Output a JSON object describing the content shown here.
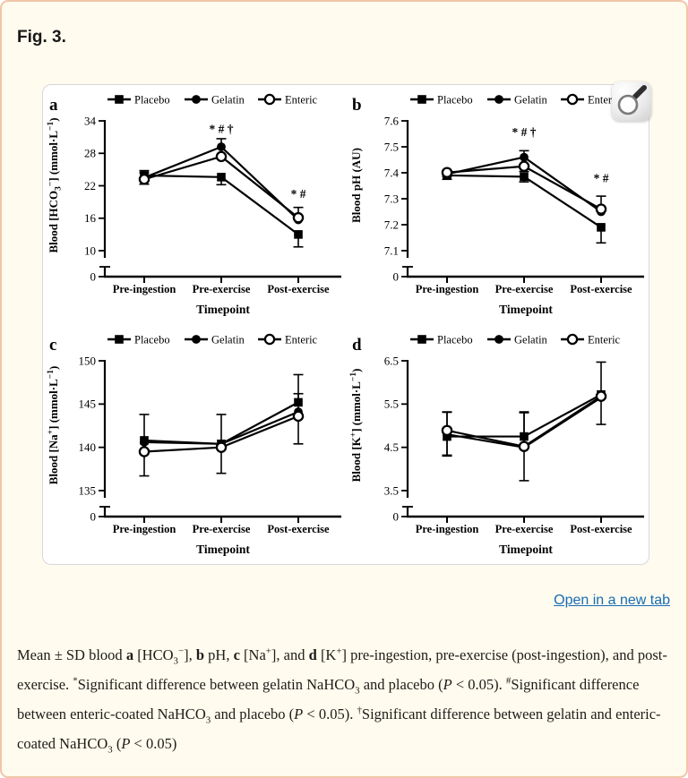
{
  "page": {
    "figure_label": "Fig. 3.",
    "open_link_label": "Open in a new tab",
    "colors": {
      "card_background": "#fffbee",
      "card_border": "#f2c5a9",
      "link": "#176cb4",
      "figure_border": "#d8d8d6",
      "ink": "#000000"
    },
    "icons": {
      "figure_zoom": "magnifier-icon"
    }
  },
  "caption": {
    "segments": [
      {
        "t": "Mean ± SD blood "
      },
      {
        "t": "a",
        "s": "b"
      },
      {
        "t": " [HCO"
      },
      {
        "t": "3",
        "s": "sub"
      },
      {
        "t": "−",
        "s": "sup"
      },
      {
        "t": "], "
      },
      {
        "t": "b",
        "s": "b"
      },
      {
        "t": " pH, "
      },
      {
        "t": "c",
        "s": "b"
      },
      {
        "t": " [Na"
      },
      {
        "t": "+",
        "s": "sup"
      },
      {
        "t": "], and "
      },
      {
        "t": "d",
        "s": "b"
      },
      {
        "t": " [K"
      },
      {
        "t": "+",
        "s": "sup"
      },
      {
        "t": "] pre-ingestion, pre-exercise (post-ingestion), and post-exercise. "
      },
      {
        "t": "*",
        "s": "sup"
      },
      {
        "t": "Significant difference between gelatin NaHCO"
      },
      {
        "t": "3",
        "s": "sub"
      },
      {
        "t": " and placebo ("
      },
      {
        "t": "P",
        "s": "i"
      },
      {
        "t": " < 0.05). "
      },
      {
        "t": "#",
        "s": "sup"
      },
      {
        "t": "Significant difference between enteric-coated NaHCO"
      },
      {
        "t": "3",
        "s": "sub"
      },
      {
        "t": " and placebo ("
      },
      {
        "t": "P",
        "s": "i"
      },
      {
        "t": " < 0.05). "
      },
      {
        "t": "†",
        "s": "sup"
      },
      {
        "t": "Significant difference between gelatin and enteric-coated NaHCO"
      },
      {
        "t": "3",
        "s": "sub"
      },
      {
        "t": " ("
      },
      {
        "t": "P",
        "s": "i"
      },
      {
        "t": " < 0.05)"
      }
    ]
  },
  "chart_data": [
    {
      "type": "line",
      "panel": "a",
      "xlabel": "Timepoint",
      "categories": [
        "Pre-ingestion",
        "Pre-exercise",
        "Post-exercise"
      ],
      "ylabel_parts": [
        {
          "t": "Blood [HCO"
        },
        {
          "t": "3",
          "s": "sub"
        },
        {
          "t": "−",
          "s": "sup"
        },
        {
          "t": "] (mmol·L"
        },
        {
          "t": "−1",
          "s": "sup"
        },
        {
          "t": ")"
        }
      ],
      "ymax": 34,
      "ymin_tick": 10,
      "yticks": [
        34,
        28,
        22,
        16,
        10
      ],
      "zero_label": "0",
      "series": [
        {
          "name": "Placebo",
          "marker": "filled-square",
          "values": [
            23.9,
            23.6,
            13.0
          ],
          "err_up": [
            0.9,
            0,
            0
          ],
          "err_down": [
            0.9,
            1.4,
            2.3
          ]
        },
        {
          "name": "Gelatin",
          "marker": "filled-circle",
          "values": [
            23.5,
            29.2,
            15.7
          ],
          "err_up": [
            0.9,
            1.5,
            2.3
          ],
          "err_down": [
            0,
            0,
            0
          ]
        },
        {
          "name": "Enteric",
          "marker": "open-circle",
          "values": [
            23.2,
            27.4,
            16.1
          ],
          "err_up": [
            0,
            0,
            0
          ],
          "err_down": [
            0.9,
            0,
            0
          ]
        }
      ],
      "annotations": [
        {
          "x": 1,
          "value": 31.8,
          "text": "* # †"
        },
        {
          "x": 2,
          "value": 19.8,
          "text": "* #"
        }
      ]
    },
    {
      "type": "line",
      "panel": "b",
      "xlabel": "Timepoint",
      "categories": [
        "Pre-ingestion",
        "Pre-exercise",
        "Post-exercise"
      ],
      "ylabel_parts": [
        {
          "t": "Blood pH (AU)"
        }
      ],
      "ymax": 7.6,
      "ymin_tick": 7.1,
      "yticks": [
        7.6,
        7.5,
        7.4,
        7.3,
        7.2,
        7.1
      ],
      "zero_label": "0",
      "series": [
        {
          "name": "Placebo",
          "marker": "filled-square",
          "values": [
            7.39,
            7.385,
            7.19
          ],
          "err_up": [
            0.015,
            0,
            0
          ],
          "err_down": [
            0.015,
            0.02,
            0.06
          ]
        },
        {
          "name": "Gelatin",
          "marker": "filled-circle",
          "values": [
            7.395,
            7.46,
            7.25
          ],
          "err_up": [
            0.01,
            0.025,
            0.06
          ],
          "err_down": [
            0,
            0,
            0
          ]
        },
        {
          "name": "Enteric",
          "marker": "open-circle",
          "values": [
            7.401,
            7.425,
            7.26
          ],
          "err_up": [
            0,
            0,
            0
          ],
          "err_down": [
            0.015,
            0.02,
            0
          ]
        }
      ],
      "annotations": [
        {
          "x": 1,
          "value": 7.542,
          "text": "* # †"
        },
        {
          "x": 2,
          "value": 7.363,
          "text": "* #"
        }
      ]
    },
    {
      "type": "line",
      "panel": "c",
      "xlabel": "Timepoint",
      "categories": [
        "Pre-ingestion",
        "Pre-exercise",
        "Post-exercise"
      ],
      "ylabel_parts": [
        {
          "t": "Blood [Na"
        },
        {
          "t": "+",
          "s": "sup"
        },
        {
          "t": "] (mmol·L"
        },
        {
          "t": "−1",
          "s": "sup"
        },
        {
          "t": ")"
        }
      ],
      "ymax": 150,
      "ymin_tick": 135,
      "yticks": [
        150,
        145,
        140,
        135
      ],
      "zero_label": "0",
      "series": [
        {
          "name": "Placebo",
          "marker": "filled-square",
          "values": [
            140.8,
            140.4,
            145.2
          ],
          "err_up": [
            3.0,
            3.4,
            3.2
          ],
          "err_down": [
            0,
            0,
            0
          ]
        },
        {
          "name": "Gelatin",
          "marker": "filled-circle",
          "values": [
            140.6,
            140.4,
            144.1
          ],
          "err_up": [
            0,
            0,
            2.1
          ],
          "err_down": [
            0,
            0,
            0
          ]
        },
        {
          "name": "Enteric",
          "marker": "open-circle",
          "values": [
            139.5,
            140.0,
            143.6
          ],
          "err_up": [
            0,
            0,
            0
          ],
          "err_down": [
            2.8,
            3.0,
            3.2
          ]
        }
      ],
      "annotations": []
    },
    {
      "type": "line",
      "panel": "d",
      "xlabel": "Timepoint",
      "categories": [
        "Pre-ingestion",
        "Pre-exercise",
        "Post-exercise"
      ],
      "ylabel_parts": [
        {
          "t": "Blood [K"
        },
        {
          "t": "+",
          "s": "sup"
        },
        {
          "t": "] (mmol·L"
        },
        {
          "t": "−1",
          "s": "sup"
        },
        {
          "t": ")"
        }
      ],
      "ymax": 6.5,
      "ymin_tick": 3.5,
      "yticks": [
        6.5,
        5.5,
        4.5,
        3.5
      ],
      "zero_label": "0",
      "series": [
        {
          "name": "Placebo",
          "marker": "filled-square",
          "values": [
            4.75,
            4.75,
            5.72
          ],
          "err_up": [
            0.56,
            0.55,
            0.75
          ],
          "err_down": [
            0,
            0,
            0
          ]
        },
        {
          "name": "Gelatin",
          "marker": "filled-circle",
          "values": [
            4.8,
            4.5,
            5.65
          ],
          "err_up": [
            0,
            0,
            0
          ],
          "err_down": [
            0.5,
            0.77,
            0.62
          ]
        },
        {
          "name": "Enteric",
          "marker": "open-circle",
          "values": [
            4.89,
            4.52,
            5.68
          ],
          "err_up": [
            0.43,
            0.8,
            0
          ],
          "err_down": [
            0.57,
            0,
            0
          ]
        }
      ],
      "annotations": []
    }
  ]
}
